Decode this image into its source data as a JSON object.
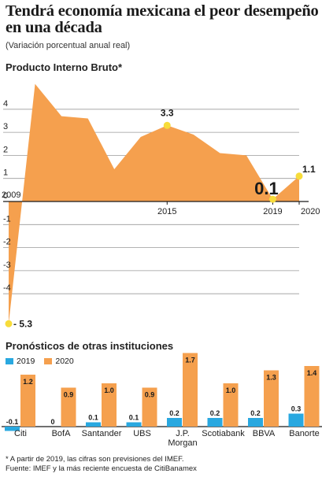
{
  "header": {
    "title": "Tendrá economía mexicana el peor desempeño en una década",
    "subtitle": "(Variación porcentual anual real)"
  },
  "section1": {
    "title": "Producto Interno Bruto*"
  },
  "section2": {
    "title": "Pronósticos de otras instituciones"
  },
  "legend": {
    "label_2019": "2019",
    "label_2020": "2020"
  },
  "footnote": {
    "line1": "* A partir de 2019, las cifras son previsiones del IMEF.",
    "line2": "Fuente: IMEF y la más reciente encuesta de CitiBanamex"
  },
  "colors": {
    "orange": "#F5A04E",
    "blue": "#29A8E0",
    "yellow": "#F7DC3A",
    "axis": "#1a1a1a",
    "grid": "#9a9a9a"
  },
  "chart_data": [
    {
      "type": "area",
      "title": "Producto Interno Bruto*",
      "x": [
        2009,
        2010,
        2011,
        2012,
        2013,
        2014,
        2015,
        2016,
        2017,
        2018,
        2019,
        2020
      ],
      "values": [
        -5.3,
        5.1,
        3.7,
        3.6,
        1.4,
        2.8,
        3.3,
        2.9,
        2.1,
        2.0,
        0.1,
        1.1
      ],
      "x_tick_labels": [
        "2009",
        "2015",
        "2019",
        "2020"
      ],
      "y_ticks": [
        "4",
        "3",
        "2",
        "1",
        "0",
        "-1",
        "-2",
        "-3",
        "-4"
      ],
      "ylim": [
        -5.5,
        5.3
      ],
      "highlighted": [
        {
          "x": 2009,
          "label": "- 5.3"
        },
        {
          "x": 2015,
          "label": "3.3"
        },
        {
          "x": 2019,
          "label": "0.1"
        },
        {
          "x": 2020,
          "label": "1.1"
        }
      ],
      "grid": true
    },
    {
      "type": "bar",
      "title": "Pronósticos de otras instituciones",
      "categories": [
        "Citi",
        "BofA",
        "Santander",
        "UBS",
        "J.P. Morgan",
        "Scotiabank",
        "BBVA",
        "Banorte"
      ],
      "series": [
        {
          "name": "2019",
          "values": [
            -0.1,
            0,
            0.1,
            0.1,
            0.2,
            0.2,
            0.2,
            0.3
          ],
          "labels": [
            "-0.1",
            "0",
            "0.1",
            "0.1",
            "0.2",
            "0.2",
            "0.2",
            "0.3"
          ]
        },
        {
          "name": "2020",
          "values": [
            1.2,
            0.9,
            1.0,
            0.9,
            1.7,
            1.0,
            1.3,
            1.4
          ],
          "labels": [
            "1.2",
            "0.9",
            "1.0",
            "0.9",
            "1.7",
            "1.0",
            "1.3",
            "1.4"
          ]
        }
      ]
    }
  ]
}
